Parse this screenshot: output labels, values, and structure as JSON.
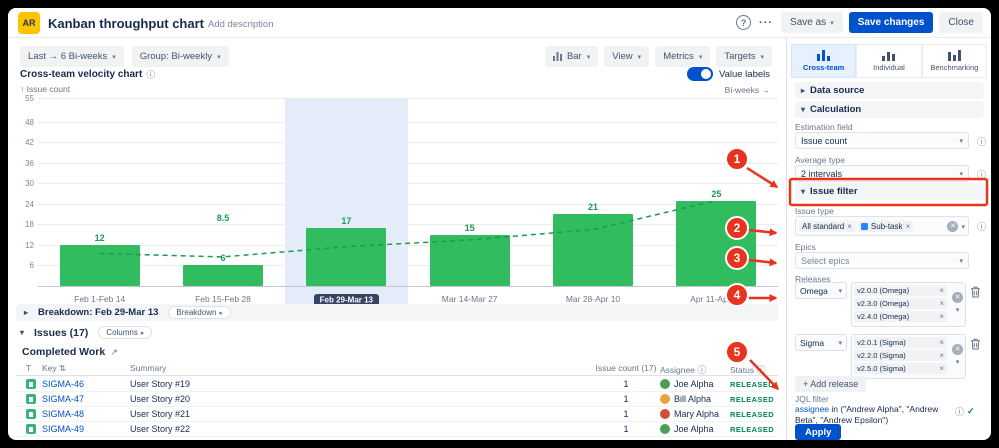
{
  "icons": {
    "caret_down": "▾",
    "caret_right": "▸",
    "caret_expanded": "▾",
    "info": "ⓘ",
    "close": "×",
    "clear": "✕",
    "check": "✓",
    "sort": "⇅",
    "external": "↗",
    "dots": "···",
    "help": "?"
  },
  "colors": {
    "primary": "#0052CC",
    "bar_green": "#31BD5F",
    "status_green": "#00875A",
    "highlight_blue": "#E4ECFA",
    "selected_pill": "#344563",
    "brand_yellow": "#FFC400",
    "annotation_red": "#E8331F"
  },
  "header": {
    "logo": "AR",
    "title": "Kanban throughput chart",
    "add_description": "Add description",
    "save_as": "Save as",
    "save_changes": "Save changes",
    "close": "Close"
  },
  "toolbar": {
    "range": "Last → 6 Bi-weeks",
    "group": "Group: Bi-weekly",
    "chart_type": "Bar",
    "view": "View",
    "metrics": "Metrics",
    "targets": "Targets"
  },
  "chart": {
    "title": "Cross-team velocity chart",
    "value_labels_toggle": "Value labels",
    "value_labels_on": true,
    "x_axis_hint": "Bi-weeks →",
    "y_axis_label": "↑ Issue count"
  },
  "chart_data": {
    "type": "bar",
    "title": "Cross-team velocity chart",
    "categories": [
      "Feb 1-Feb 14",
      "Feb 15-Feb 28",
      "Feb 29-Mar 13",
      "Mar 14-Mar 27",
      "Mar 28-Apr 10",
      "Apr 11-Apr 24"
    ],
    "values": [
      12,
      6,
      17,
      15,
      21,
      25
    ],
    "selected_category": "Feb 29-Mar 13",
    "trend": {
      "type": "moving_average",
      "points": [
        9.5,
        8.5,
        11.5,
        13.5,
        16.5,
        25
      ],
      "label": "8.5",
      "label_index": 1
    },
    "ylim": [
      0,
      55
    ],
    "yticks": [
      55,
      48,
      42,
      36,
      30,
      24,
      18,
      12,
      6
    ],
    "xlabel": "Bi-weeks",
    "ylabel": "Issue count",
    "bar_color": "#31BD5F",
    "trend_color": "#1E9950",
    "value_label_color": "#1E9950",
    "highlight_color": "#E4ECFA"
  },
  "breakdown": {
    "label": "Breakdown: Feb 29-Mar 13",
    "button": "Breakdown"
  },
  "issues": {
    "title": "Issues (17)",
    "columns_button": "Columns",
    "subtitle": "Completed Work",
    "table": {
      "headers": [
        "T",
        "Key",
        "Summary",
        "Issue count (17)",
        "Assignee",
        "Status"
      ],
      "rows": [
        {
          "type": "Story",
          "key": "SIGMA-46",
          "summary": "User Story #19",
          "count": "1",
          "assignee": "Joe Alpha",
          "avatar_color": "#4E9E53",
          "status": "RELEASED"
        },
        {
          "type": "Story",
          "key": "SIGMA-47",
          "summary": "User Story #20",
          "count": "1",
          "assignee": "Bill Alpha",
          "avatar_color": "#E8A33D",
          "status": "RELEASED"
        },
        {
          "type": "Story",
          "key": "SIGMA-48",
          "summary": "User Story #21",
          "count": "1",
          "assignee": "Mary Alpha",
          "avatar_color": "#CE5039",
          "status": "RELEASED"
        },
        {
          "type": "Story",
          "key": "SIGMA-49",
          "summary": "User Story #22",
          "count": "1",
          "assignee": "Joe Alpha",
          "avatar_color": "#4E9E53",
          "status": "RELEASED"
        }
      ]
    }
  },
  "sidebar": {
    "tabs": [
      {
        "label": "Cross-team",
        "selected": true
      },
      {
        "label": "Individual",
        "selected": false
      },
      {
        "label": "Benchmarking",
        "selected": false
      }
    ],
    "sections": {
      "data_source": "Data source",
      "calculation": "Calculation",
      "issue_filter": "Issue filter"
    },
    "calculation": {
      "estimation_field_label": "Estimation field",
      "estimation_field_value": "Issue count",
      "average_type_label": "Average type",
      "average_type_value": "2 intervals"
    },
    "issue_filter": {
      "issue_type_label": "Issue type",
      "issue_type_tags": [
        {
          "label": "All standard"
        },
        {
          "label": "Sub-task",
          "icon_color": "#2684FF"
        }
      ],
      "epics_label": "Epics",
      "epics_placeholder": "Select epics",
      "releases_label": "Releases",
      "releases": [
        {
          "name": "Omega",
          "versions": [
            "v2.0.0 (Omega)",
            "v2.3.0 (Omega)",
            "v2.4.0 (Omega)"
          ]
        },
        {
          "name": "Sigma",
          "versions": [
            "v2.0.1 (Sigma)",
            "v2.2.0 (Sigma)",
            "v2.5.0 (Sigma)"
          ]
        }
      ],
      "add_release": "+ Add release",
      "jql_label": "JQL filter",
      "jql_keyword": "assignee",
      "jql_rest": " in (\"Andrew Alpha\", \"Andrew Beta\", \"Andrew Epsilon\")",
      "apply": "Apply"
    }
  },
  "annotations": {
    "color": "#E8331F",
    "callouts": [
      {
        "n": "1"
      },
      {
        "n": "2"
      },
      {
        "n": "3"
      },
      {
        "n": "4"
      },
      {
        "n": "5"
      }
    ]
  }
}
